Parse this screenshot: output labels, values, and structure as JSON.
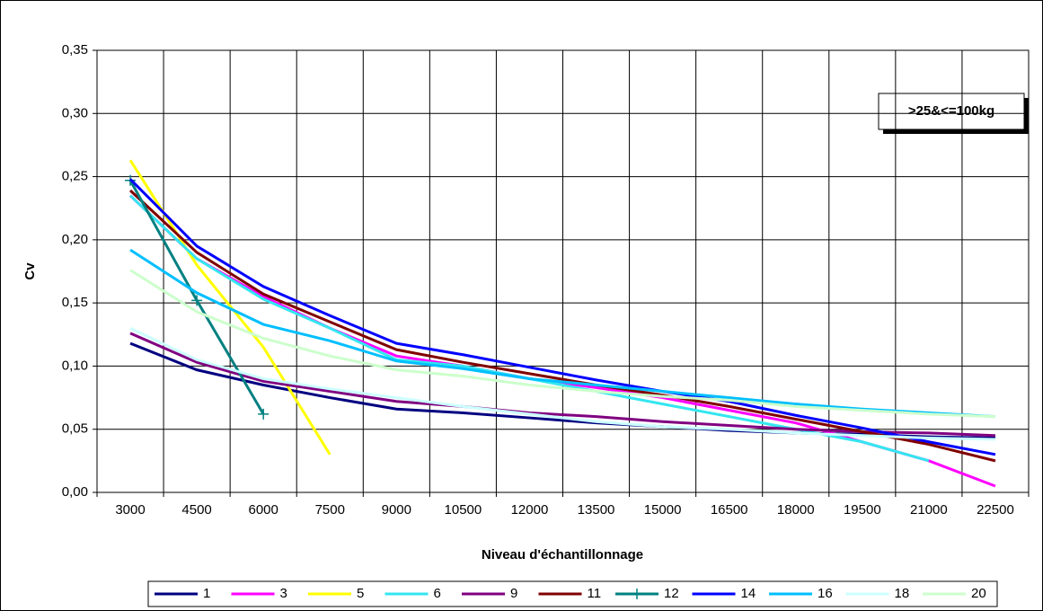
{
  "chart_data": {
    "type": "line",
    "ylabel": "Cv",
    "xlabel": "Niveau d'échantillonnage",
    "annotation": ">25&<=100kg",
    "categories": [
      "3000",
      "4500",
      "6000",
      "7500",
      "9000",
      "10500",
      "12000",
      "13500",
      "15000",
      "16500",
      "18000",
      "19500",
      "21000",
      "22500"
    ],
    "ylim": [
      0,
      0.35
    ],
    "yticks": [
      {
        "value": 0,
        "label": "0,00"
      },
      {
        "value": 0.05,
        "label": "0,05"
      },
      {
        "value": 0.1,
        "label": "0,10"
      },
      {
        "value": 0.15,
        "label": "0,15"
      },
      {
        "value": 0.2,
        "label": "0,20"
      },
      {
        "value": 0.25,
        "label": "0,25"
      },
      {
        "value": 0.3,
        "label": "0,30"
      },
      {
        "value": 0.35,
        "label": "0,35"
      }
    ],
    "grid": true,
    "legend": "bottom",
    "series": [
      {
        "name": "1",
        "color": "#000080",
        "values": [
          0.118,
          0.097,
          0.085,
          0.075,
          0.066,
          0.063,
          0.059,
          0.055,
          0.052,
          0.049,
          0.047,
          0.046,
          0.044,
          0.043
        ]
      },
      {
        "name": "3",
        "color": "#ff00ff",
        "values": [
          0.235,
          0.185,
          0.155,
          0.13,
          0.108,
          0.1,
          0.09,
          0.083,
          0.075,
          0.065,
          0.055,
          0.04,
          0.025,
          0.005
        ]
      },
      {
        "name": "5",
        "color": "#ffff00",
        "values": [
          0.263,
          0.18,
          0.115,
          0.03,
          null,
          null,
          null,
          null,
          null,
          null,
          null,
          null,
          null,
          null
        ]
      },
      {
        "name": "6",
        "color": "#33e6f0",
        "values": [
          0.235,
          0.185,
          0.153,
          0.13,
          0.105,
          0.1,
          0.09,
          0.08,
          0.07,
          0.06,
          0.05,
          0.04,
          0.025,
          null
        ]
      },
      {
        "name": "9",
        "color": "#800080",
        "values": [
          0.126,
          0.103,
          0.088,
          0.08,
          0.072,
          0.068,
          0.063,
          0.06,
          0.056,
          0.053,
          0.05,
          0.048,
          0.047,
          0.045
        ]
      },
      {
        "name": "11",
        "color": "#800000",
        "values": [
          0.239,
          0.19,
          0.157,
          0.135,
          0.113,
          0.103,
          0.094,
          0.085,
          0.077,
          0.068,
          0.058,
          0.048,
          0.038,
          0.025
        ]
      },
      {
        "name": "12",
        "color": "#008080",
        "marker": "plus",
        "values": [
          0.247,
          0.152,
          0.062,
          null,
          null,
          null,
          null,
          null,
          null,
          null,
          null,
          null,
          null,
          null
        ]
      },
      {
        "name": "14",
        "color": "#0000ff",
        "values": [
          0.248,
          0.195,
          0.163,
          0.14,
          0.118,
          0.109,
          0.099,
          0.089,
          0.08,
          0.072,
          0.061,
          0.051,
          0.04,
          0.03
        ]
      },
      {
        "name": "16",
        "color": "#00bfff",
        "values": [
          0.192,
          0.158,
          0.133,
          0.12,
          0.104,
          0.098,
          0.09,
          0.085,
          0.08,
          0.075,
          0.07,
          0.066,
          0.063,
          0.06
        ]
      },
      {
        "name": "18",
        "color": "#ccffff",
        "values": [
          0.13,
          0.105,
          0.09,
          0.082,
          0.075,
          0.068,
          0.062,
          0.056,
          0.052,
          0.05,
          0.047,
          0.045,
          0.043,
          0.042
        ]
      },
      {
        "name": "20",
        "color": "#ccffcc",
        "values": [
          0.176,
          0.143,
          0.122,
          0.108,
          0.097,
          0.092,
          0.085,
          0.08,
          0.076,
          0.073,
          0.068,
          0.065,
          0.062,
          0.06
        ]
      }
    ]
  }
}
